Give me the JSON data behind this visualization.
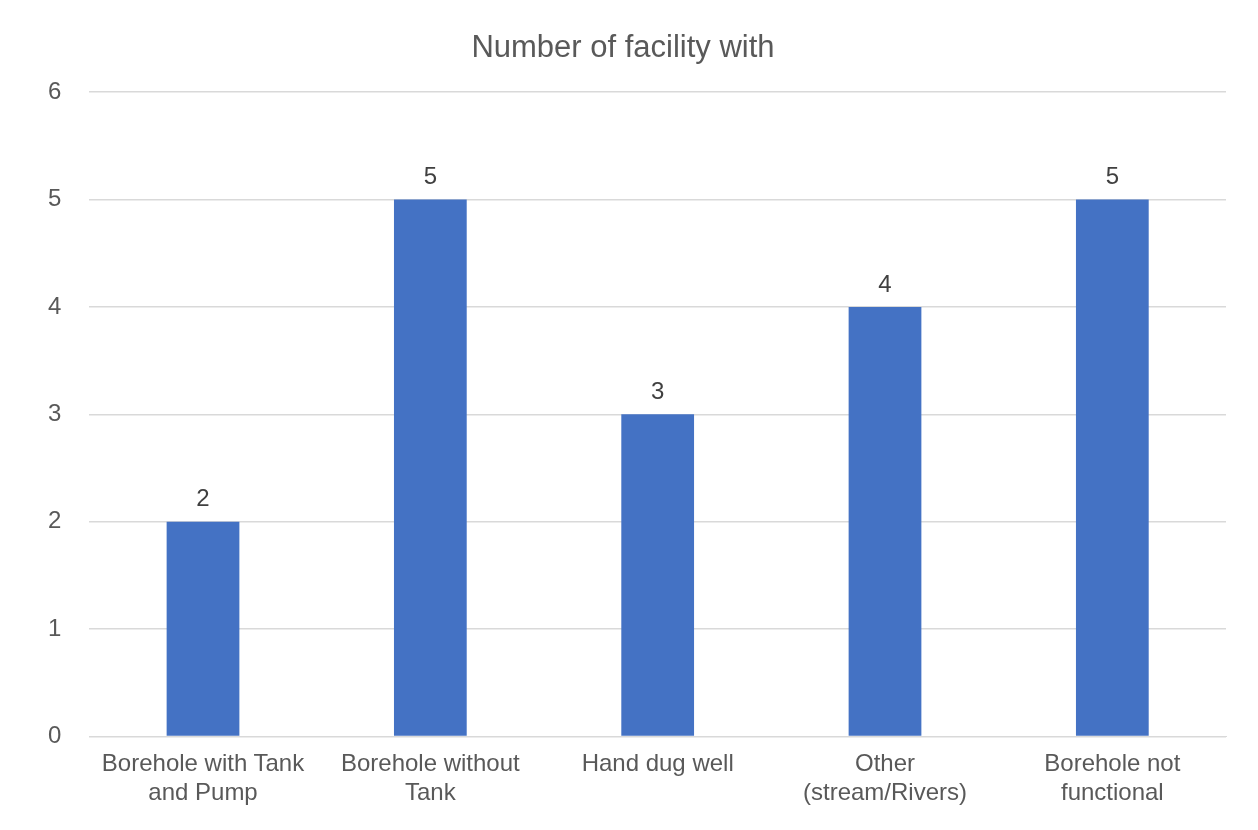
{
  "chart_data": {
    "type": "bar",
    "title": "Number of facility with",
    "categories": [
      "Borehole with Tank and Pump",
      "Borehole without Tank",
      "Hand dug well",
      "Other (stream/Rivers)",
      "Borehole not functional"
    ],
    "values": [
      2,
      5,
      3,
      4,
      5
    ],
    "color": "#4472c4",
    "ylim": [
      0,
      6
    ],
    "yticks": [
      0,
      1,
      2,
      3,
      4,
      5,
      6
    ],
    "grid": "y",
    "data_labels": true,
    "legend": false
  }
}
